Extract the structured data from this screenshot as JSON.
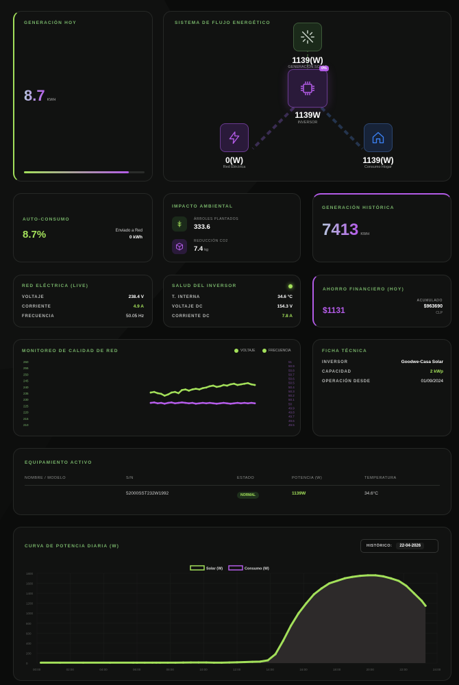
{
  "colors": {
    "accent_green": "#a3e05a",
    "accent_purple": "#b45ce8",
    "label_green": "#78b46a",
    "house_blue": "#3b82f6"
  },
  "gen_hoy": {
    "title": "GENERACIÓN HOY",
    "value": "8.7",
    "unit": "KWH",
    "progress": 0.87
  },
  "flow": {
    "title": "SISTEMA DE FLUJO ENERGÉTICO",
    "solar": {
      "value": "1139(W)",
      "label": "GENERACIÓN SOLAR",
      "icon": "solar-panel-icon"
    },
    "inverter": {
      "value": "1139W",
      "label": "INVERSOR",
      "badge": "0%",
      "icon": "chip-icon"
    },
    "grid": {
      "value": "0(W)",
      "label": "Red Eléctrica",
      "icon": "lightning-icon"
    },
    "home": {
      "value": "1139(W)",
      "label": "Consumo Hogar",
      "icon": "house-icon"
    }
  },
  "autoconsumo": {
    "title": "AUTO-CONSUMO",
    "value": "8.7%",
    "sent_label": "Enviado a Red",
    "sent_value": "0 kWh"
  },
  "impacto": {
    "title": "IMPACTO AMBIENTAL",
    "trees_label": "ÁRBOLES PLANTADOS",
    "trees_value": "333.6",
    "co2_label": "REDUCCIÓN CO2",
    "co2_value": "7.4",
    "co2_unit": "kg"
  },
  "historica": {
    "title": "GENERACIÓN HISTÓRICA",
    "value": "7413",
    "unit": "KWH"
  },
  "red": {
    "title": "RED ELÉCTRICA (LIVE)",
    "rows": [
      {
        "label": "VOLTAJE",
        "value": "238.4 V"
      },
      {
        "label": "CORRIENTE",
        "value": "4.9 A"
      },
      {
        "label": "FRECUENCIA",
        "value": "50.05 Hz"
      }
    ]
  },
  "salud": {
    "title": "SALUD DEL INVERSOR",
    "rows": [
      {
        "label": "T. INTERNA",
        "value": "34.6 °C"
      },
      {
        "label": "VOLTAJE DC",
        "value": "154.3 V"
      },
      {
        "label": "CORRIENTE DC",
        "value": "7.8 A"
      }
    ]
  },
  "ahorro": {
    "title": "AHORRO FINANCIERO (HOY)",
    "value": "$1131",
    "acc_label": "ACUMULADO",
    "acc_value": "$963690",
    "currency": "CLP"
  },
  "monitoreo": {
    "title": "MONITOREO DE CALIDAD DE RED",
    "legend_v": "VOLTAJE",
    "legend_f": "FRECUENCIA"
  },
  "ficha": {
    "title": "FICHA TÉCNICA",
    "rows": [
      {
        "label": "INVERSOR",
        "value": "Goodwe-Casa Solar"
      },
      {
        "label": "CAPACIDAD",
        "value": "2 kWp"
      },
      {
        "label": "OPERACIÓN DESDE",
        "value": "01/09/2024"
      }
    ]
  },
  "equipo": {
    "title": "EQUIPAMIENTO ACTIVO",
    "headers": [
      "NOMBRE / MODELO",
      "S/N",
      "ESTADO",
      "POTENCIA (W)",
      "TEMPERATURA"
    ],
    "row": {
      "name": "",
      "sn": "52000SST232W1992",
      "status": "NORMAL",
      "power": "1139W",
      "temp": "34.6°C"
    }
  },
  "curva": {
    "title": "CURVA DE POTENCIA DIARIA (W)",
    "hist_label": "HISTÓRICO:",
    "date": "22-04-2026"
  },
  "chart_data": [
    {
      "type": "line",
      "title": "MONITOREO DE CALIDAD DE RED",
      "y_left_ticks": [
        "260",
        "255",
        "250",
        "245",
        "240",
        "235",
        "230",
        "225",
        "220",
        "215",
        "210"
      ],
      "y_right_ticks": [
        "51",
        "50.9",
        "50.8",
        "50.7",
        "50.6",
        "50.5",
        "50.4",
        "50.3",
        "50.2",
        "50.1",
        "50",
        "49.9",
        "49.8",
        "49.7",
        "49.6",
        "49.5"
      ],
      "ylim_left": [
        210,
        260
      ],
      "series": [
        {
          "name": "VOLTAJE",
          "color": "#a3e05a",
          "x": [
            0,
            1,
            2,
            3,
            4,
            5,
            6,
            7,
            8,
            9,
            10,
            11,
            12,
            13,
            14,
            15,
            16,
            17,
            18,
            19,
            20,
            21,
            22,
            23,
            24,
            25,
            26,
            27,
            28,
            29,
            30
          ],
          "values": [
            235.5,
            236,
            235,
            234.5,
            233,
            234,
            235.5,
            236,
            235,
            237.5,
            238,
            237,
            238,
            238.5,
            238,
            239,
            239.5,
            240.5,
            241,
            240,
            240.5,
            241.5,
            241,
            242,
            242.5,
            241.5,
            242,
            242.5,
            243,
            242,
            241.5
          ]
        },
        {
          "name": "FRECUENCIA",
          "color": "#b45ce8",
          "x": [
            0,
            1,
            2,
            3,
            4,
            5,
            6,
            7,
            8,
            9,
            10,
            11,
            12,
            13,
            14,
            15,
            16,
            17,
            18,
            19,
            20,
            21,
            22,
            23,
            24,
            25,
            26,
            27,
            28,
            29,
            30
          ],
          "values": [
            50.02,
            50.03,
            50.01,
            50.02,
            50.0,
            50.02,
            50.03,
            50.01,
            50.02,
            50.03,
            50.02,
            50.01,
            50.02,
            50.0,
            50.01,
            50.02,
            50.01,
            50.02,
            50.01,
            50.0,
            50.01,
            50.02,
            50.01,
            50.0,
            50.01,
            50.02,
            50.01,
            50.02,
            50.01,
            50.02,
            50.01
          ]
        }
      ]
    },
    {
      "type": "area",
      "title": "CURVA DE POTENCIA DIARIA (W)",
      "legend": "top-center",
      "categories": [
        "00:00",
        "02:00",
        "04:00",
        "06:00",
        "08:00",
        "10:00",
        "12:00",
        "14:00",
        "16:00",
        "18:00",
        "20:00",
        "22:00",
        "24:00"
      ],
      "y_ticks": [
        "1800",
        "1600",
        "1400",
        "1200",
        "1000",
        "800",
        "600",
        "400",
        "200",
        "0"
      ],
      "ylim": [
        0,
        1800
      ],
      "series": [
        {
          "name": "Solar (W)",
          "color": "#a3e05a",
          "x": [
            0.5,
            3,
            6,
            9.5,
            12.5,
            13,
            14,
            15,
            15.5,
            16,
            17,
            18,
            19,
            20,
            21,
            22,
            23,
            24,
            25,
            26,
            27,
            28,
            29,
            30,
            31,
            32,
            33,
            34,
            35,
            36,
            37,
            38,
            39,
            40,
            41,
            42,
            43,
            44,
            45,
            46,
            47,
            48,
            49,
            50,
            50.5
          ],
          "values": [
            8,
            8,
            8,
            8,
            8,
            8,
            8,
            8,
            8,
            8,
            8,
            8,
            10,
            12,
            12,
            12,
            8,
            8,
            12,
            15,
            20,
            25,
            30,
            55,
            180,
            450,
            750,
            1000,
            1200,
            1380,
            1500,
            1600,
            1650,
            1700,
            1730,
            1750,
            1760,
            1760,
            1740,
            1700,
            1650,
            1550,
            1400,
            1250,
            1150
          ]
        },
        {
          "name": "Consumo (W)",
          "color": "#b45ce8",
          "x": [],
          "values": []
        }
      ]
    }
  ]
}
